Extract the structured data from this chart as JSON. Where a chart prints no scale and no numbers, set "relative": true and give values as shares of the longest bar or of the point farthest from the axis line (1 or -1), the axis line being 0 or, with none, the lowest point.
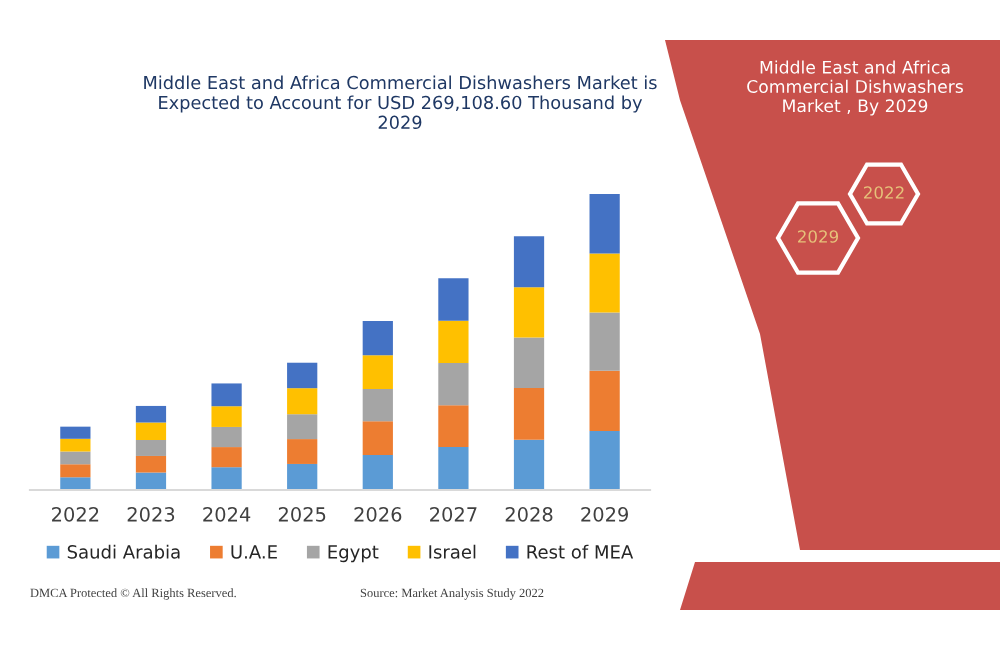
{
  "chart_data": {
    "type": "bar",
    "title": "Middle East and Africa Commercial Dishwashers Market is Expected to Account for USD 269,108.60 Thousand by 2029",
    "categories": [
      "2022",
      "2023",
      "2024",
      "2025",
      "2026",
      "2027",
      "2028",
      "2029"
    ],
    "relative": true,
    "stacked": true,
    "legend": "bottom",
    "grid": false,
    "series": [
      {
        "name": "Saudi Arabia",
        "color": "#5b9bd5",
        "values": [
          0.043,
          0.059,
          0.077,
          0.088,
          0.118,
          0.145,
          0.17,
          0.199
        ]
      },
      {
        "name": "U.A.E",
        "color": "#ed7d31",
        "values": [
          0.044,
          0.056,
          0.068,
          0.084,
          0.114,
          0.141,
          0.175,
          0.204
        ]
      },
      {
        "name": "Egypt",
        "color": "#a5a5a5",
        "values": [
          0.043,
          0.054,
          0.068,
          0.084,
          0.109,
          0.143,
          0.17,
          0.197
        ]
      },
      {
        "name": "Israel",
        "color": "#ffc000",
        "values": [
          0.043,
          0.059,
          0.07,
          0.088,
          0.114,
          0.143,
          0.17,
          0.199
        ]
      },
      {
        "name": "Rest of MEA",
        "color": "#4472c4",
        "values": [
          0.041,
          0.056,
          0.077,
          0.086,
          0.116,
          0.143,
          0.172,
          0.201
        ]
      }
    ],
    "annotations": [
      "Middle East and Africa Commercial Dishwashers Market , By 2029",
      "2022",
      "2029",
      "DMCA Protected © All Rights Reserved.",
      "Source: Market Analysis Study 2022"
    ]
  }
}
